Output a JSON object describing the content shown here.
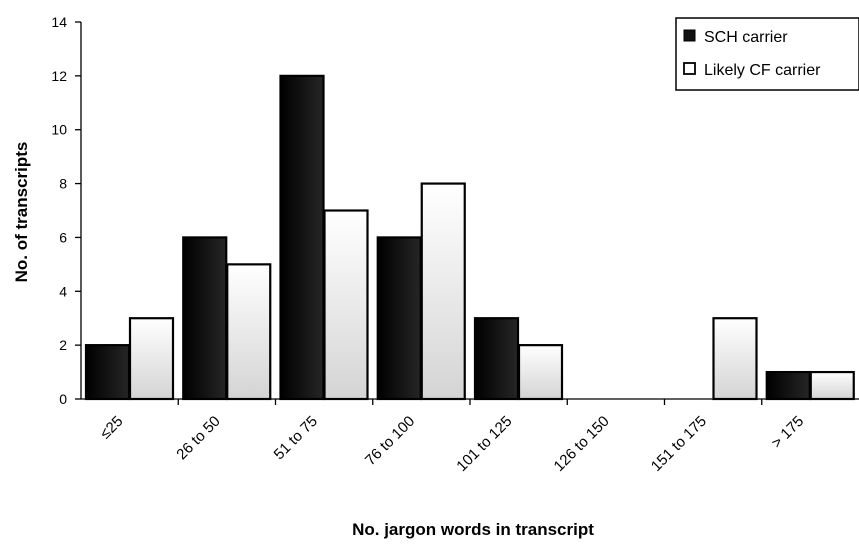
{
  "chart_data": {
    "type": "bar",
    "xlabel": "No. jargon words in transcript",
    "ylabel": "No. of  transcripts",
    "categories": [
      "≤25",
      "26 to 50",
      "51 to 75",
      "76 to 100",
      "101 to 125",
      "126 to 150",
      "151 to 175",
      "> 175"
    ],
    "ylim": [
      0,
      14
    ],
    "yticks": [
      0,
      2,
      4,
      6,
      8,
      10,
      12,
      14
    ],
    "grid": false,
    "legend_position": "top-right",
    "series": [
      {
        "name": "SCH carrier",
        "values": [
          2,
          6,
          12,
          6,
          3,
          0,
          0,
          1
        ],
        "color": "#1a1a1a"
      },
      {
        "name": "Likely CF carrier",
        "values": [
          3,
          5,
          7,
          8,
          2,
          0,
          3,
          1
        ],
        "color": "#ffffff"
      }
    ]
  }
}
